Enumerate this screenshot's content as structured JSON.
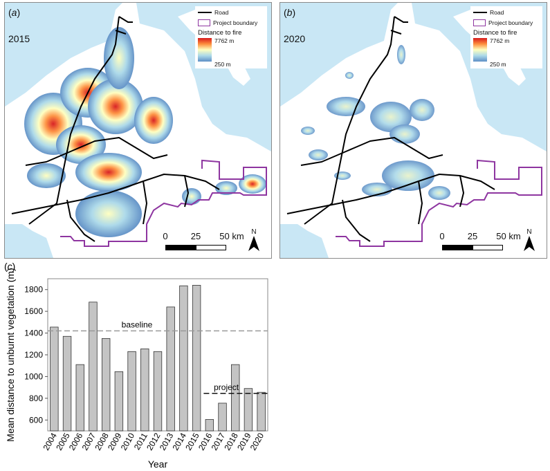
{
  "panels": [
    {
      "label_letter": "a",
      "year": "2015",
      "legend": {
        "road": "Road",
        "boundary": "Project boundary",
        "title": "Distance to fire",
        "max": "7762 m",
        "min": "250 m"
      },
      "scale": {
        "ticks": [
          "0",
          "25",
          "50 km"
        ]
      },
      "north": "N"
    },
    {
      "label_letter": "b",
      "year": "2020",
      "legend": {
        "road": "Road",
        "boundary": "Project boundary",
        "title": "Distance to fire",
        "max": "7762 m",
        "min": "250 m"
      },
      "scale": {
        "ticks": [
          "0",
          "25",
          "50 km"
        ]
      },
      "north": "N"
    }
  ],
  "colors": {
    "water": "#c9e7f5",
    "road": "#000000",
    "boundary": "#8e35a0",
    "heat_low": "#5e8fc6",
    "heat_high": "#d7191c",
    "bar_fill": "#c4c4c4",
    "bar_edge": "#333333",
    "baseline_line": "#9a9a9a",
    "project_line": "#111111"
  },
  "chart_data": {
    "type": "bar",
    "panel_label": "c",
    "categories": [
      "2004",
      "2005",
      "2006",
      "2007",
      "2008",
      "2009",
      "2010",
      "2011",
      "2012",
      "2013",
      "2014",
      "2015",
      "2016",
      "2017",
      "2018",
      "2019",
      "2020"
    ],
    "values": [
      1455,
      1370,
      1110,
      1685,
      1350,
      1045,
      1230,
      1255,
      1230,
      1640,
      1835,
      1840,
      605,
      755,
      1110,
      890,
      855
    ],
    "ylabel": "Mean distance to unburnt vegetation (m)",
    "xlabel": "Year",
    "yticks": [
      600,
      800,
      1000,
      1200,
      1400,
      1600,
      1800
    ],
    "ylim": [
      500,
      1900
    ],
    "grid": false,
    "reference_lines": [
      {
        "label": "baseline",
        "value": 1420,
        "from": "2004",
        "to": "2020",
        "style": "dashed"
      },
      {
        "label": "project",
        "value": 845,
        "from": "2016",
        "to": "2020",
        "style": "dashed"
      }
    ]
  }
}
